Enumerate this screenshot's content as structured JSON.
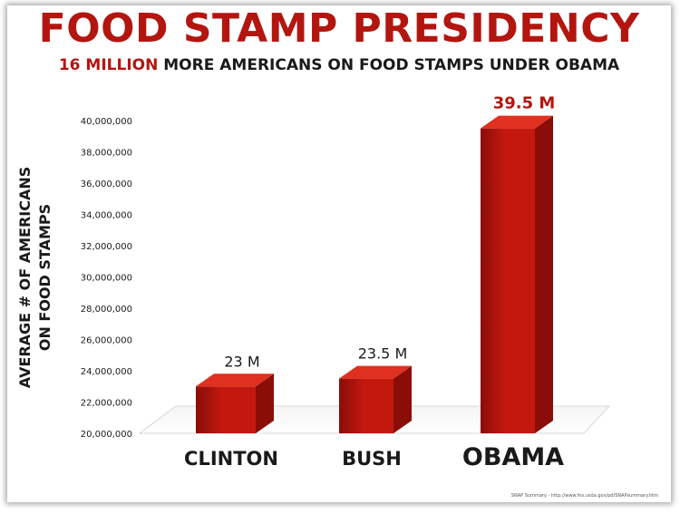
{
  "header": {
    "title": "FOOD STAMP PRESIDENCY",
    "subtitle_highlight": "16 MILLION",
    "subtitle_rest": " MORE AMERICANS ON FOOD STAMPS UNDER OBAMA"
  },
  "footer": {
    "source": "SNAP Summary - http://www.fns.usda.gov/pd/SNAPsummary.htm"
  },
  "colors": {
    "accent": "#b3160f",
    "bar_front": "#c4180f",
    "bar_top": "#e0301f",
    "bar_side": "#8a0d07",
    "text": "#1a1a1a"
  },
  "chart_data": {
    "type": "bar",
    "title": "FOOD STAMP PRESIDENCY",
    "ylabel": "AVERAGE # OF AMERICANS ON FOOD STAMPS",
    "xlabel": "",
    "categories": [
      "CLINTON",
      "BUSH",
      "OBAMA"
    ],
    "values": [
      23000000,
      23500000,
      39500000
    ],
    "data_labels": [
      "23 M",
      "23.5 M",
      "39.5 M"
    ],
    "ylim": [
      20000000,
      40000000
    ],
    "yticks": [
      20000000,
      22000000,
      24000000,
      26000000,
      28000000,
      30000000,
      32000000,
      34000000,
      36000000,
      38000000,
      40000000
    ],
    "ytick_labels": [
      "20,000,000",
      "22,000,000",
      "24,000,000",
      "26,000,000",
      "28,000,000",
      "30,000,000",
      "32,000,000",
      "34,000,000",
      "36,000,000",
      "38,000,000",
      "40,000,000"
    ],
    "grid": false,
    "legend": "none"
  }
}
